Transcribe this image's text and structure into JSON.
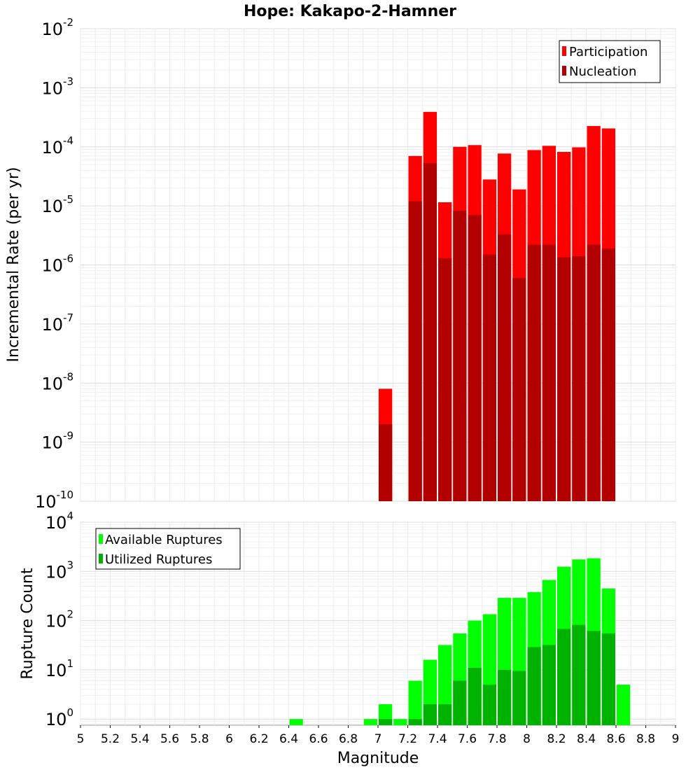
{
  "chart_data": [
    {
      "type": "bar",
      "title": "Hope: Kakapo-2-Hamner",
      "xlabel": "",
      "ylabel": "Incremental Rate (per yr)",
      "yscale": "log",
      "ylim": [
        1e-10,
        0.01
      ],
      "yticks": [
        {
          "base": "10",
          "exp": "-2"
        },
        {
          "base": "10",
          "exp": "-3"
        },
        {
          "base": "10",
          "exp": "-4"
        },
        {
          "base": "10",
          "exp": "-5"
        },
        {
          "base": "10",
          "exp": "-6"
        },
        {
          "base": "10",
          "exp": "-7"
        },
        {
          "base": "10",
          "exp": "-8"
        },
        {
          "base": "10",
          "exp": "-9"
        },
        {
          "base": "10",
          "exp": "-10"
        }
      ],
      "xlim": [
        5,
        9
      ],
      "grid": true,
      "legend_position": "top-right",
      "x": [
        7.05,
        7.25,
        7.35,
        7.45,
        7.55,
        7.65,
        7.75,
        7.85,
        7.95,
        8.05,
        8.15,
        8.25,
        8.35,
        8.45,
        8.55
      ],
      "series": [
        {
          "name": "Participation",
          "color": "#ff0000",
          "values": [
            8e-09,
            7e-05,
            0.00039,
            1.15e-05,
            0.0001,
            0.000107,
            2.8e-05,
            7.7e-05,
            1.9e-05,
            8.8e-05,
            0.000104,
            8.2e-05,
            9.8e-05,
            0.000225,
            0.000205
          ]
        },
        {
          "name": "Nucleation",
          "color": "#b20000",
          "values": [
            2e-09,
            1.2e-05,
            5.3e-05,
            1.3e-06,
            8.3e-06,
            7e-06,
            1.5e-06,
            3.3e-06,
            6e-07,
            2.2e-06,
            2.2e-06,
            1.35e-06,
            1.4e-06,
            2.2e-06,
            1.9e-06
          ]
        }
      ]
    },
    {
      "type": "bar",
      "xlabel": "Magnitude",
      "ylabel": "Rupture Count",
      "yscale": "log",
      "ylim": [
        0.75,
        10000
      ],
      "yticks": [
        {
          "base": "10",
          "exp": "4"
        },
        {
          "base": "10",
          "exp": "3"
        },
        {
          "base": "10",
          "exp": "2"
        },
        {
          "base": "10",
          "exp": "1"
        },
        {
          "base": "10",
          "exp": "0"
        }
      ],
      "xlim": [
        5,
        9
      ],
      "xticks": [
        "5",
        "5.2",
        "5.4",
        "5.6",
        "5.8",
        "6",
        "6.2",
        "6.4",
        "6.6",
        "6.8",
        "7",
        "7.2",
        "7.4",
        "7.6",
        "7.8",
        "8",
        "8.2",
        "8.4",
        "8.6",
        "8.8",
        "9"
      ],
      "grid": true,
      "legend_position": "top-left",
      "x": [
        6.45,
        6.95,
        7.05,
        7.15,
        7.25,
        7.35,
        7.45,
        7.55,
        7.65,
        7.75,
        7.85,
        7.95,
        8.05,
        8.15,
        8.25,
        8.35,
        8.45,
        8.55,
        8.65
      ],
      "series": [
        {
          "name": "Available Ruptures",
          "color": "#00ff00",
          "values": [
            1,
            1,
            2,
            1,
            6,
            16,
            32,
            55,
            100,
            135,
            290,
            290,
            380,
            670,
            1250,
            1750,
            1850,
            450,
            5
          ]
        },
        {
          "name": "Utilized Ruptures",
          "color": "#00b200",
          "values": [
            null,
            null,
            1,
            null,
            1,
            2,
            2,
            6,
            11,
            5,
            10,
            9.5,
            29,
            32,
            68,
            82,
            62,
            55,
            null
          ]
        }
      ]
    }
  ]
}
